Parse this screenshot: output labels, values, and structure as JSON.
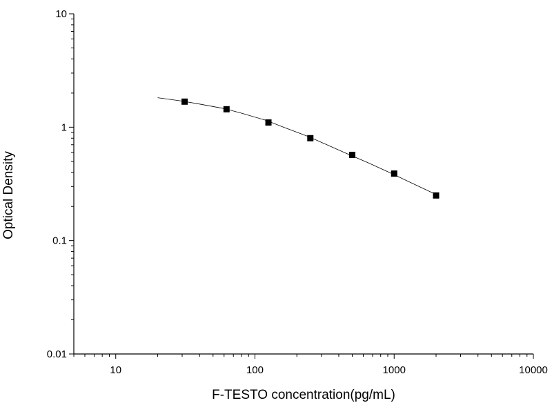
{
  "chart_data": {
    "type": "scatter",
    "x_label": "F-TESTO concentration(pg/mL)",
    "y_label": "Optical Density",
    "x": [
      31.25,
      62.5,
      125,
      250,
      500,
      1000,
      2000
    ],
    "values": [
      1.68,
      1.44,
      1.1,
      0.8,
      0.57,
      0.39,
      0.25
    ],
    "color": "#000000",
    "fit_curve": {
      "x": [
        20,
        30,
        40,
        60,
        80,
        120,
        160,
        240,
        320,
        480,
        640,
        960,
        1280,
        2000
      ],
      "values": [
        1.82,
        1.7,
        1.6,
        1.46,
        1.33,
        1.15,
        1.0,
        0.83,
        0.71,
        0.57,
        0.49,
        0.39,
        0.33,
        0.255
      ]
    },
    "xlim": [
      5,
      10000
    ],
    "ylim": [
      0.01,
      10
    ],
    "xticks": [
      10,
      100,
      1000,
      10000
    ],
    "yticks": [
      0.01,
      0.1,
      1,
      10
    ],
    "xlog": true,
    "ylog": true
  }
}
